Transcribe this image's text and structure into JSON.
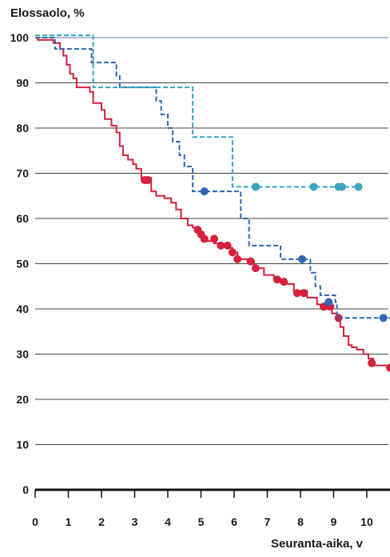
{
  "chart_data": {
    "type": "line",
    "subtype": "kaplan-meier-step",
    "title": "",
    "ylabel": "Elossaolo, %",
    "xlabel": "Seuranta-aika, v",
    "xlim": [
      0,
      10.7
    ],
    "ylim": [
      0,
      100
    ],
    "x_ticks": [
      0,
      1,
      2,
      3,
      4,
      5,
      6,
      7,
      8,
      9,
      10
    ],
    "y_ticks": [
      0,
      10,
      20,
      30,
      40,
      50,
      60,
      70,
      80,
      90,
      100
    ],
    "grid": true,
    "legend": "none",
    "series": [
      {
        "color": "#d4213d",
        "line_style": "solid",
        "steps": [
          [
            0,
            100
          ],
          [
            0.08,
            99.5
          ],
          [
            0.55,
            98.8
          ],
          [
            0.75,
            97.5
          ],
          [
            0.85,
            96
          ],
          [
            0.95,
            94
          ],
          [
            1.05,
            92
          ],
          [
            1.15,
            91
          ],
          [
            1.25,
            89
          ],
          [
            1.65,
            88
          ],
          [
            1.75,
            85.5
          ],
          [
            2.0,
            84
          ],
          [
            2.1,
            82
          ],
          [
            2.3,
            80.5
          ],
          [
            2.45,
            79
          ],
          [
            2.55,
            76
          ],
          [
            2.65,
            74
          ],
          [
            2.8,
            73
          ],
          [
            2.95,
            72
          ],
          [
            3.05,
            71
          ],
          [
            3.2,
            69
          ],
          [
            3.5,
            66
          ],
          [
            3.65,
            65
          ],
          [
            3.9,
            64.5
          ],
          [
            4.1,
            63.5
          ],
          [
            4.25,
            62
          ],
          [
            4.4,
            60
          ],
          [
            4.6,
            58.5
          ],
          [
            4.75,
            58
          ],
          [
            4.9,
            57
          ],
          [
            5.0,
            56
          ],
          [
            5.05,
            55.5
          ],
          [
            5.2,
            55
          ],
          [
            5.4,
            54.5
          ],
          [
            5.6,
            54
          ],
          [
            5.8,
            53.5
          ],
          [
            5.95,
            52.5
          ],
          [
            6.1,
            51
          ],
          [
            6.4,
            50.5
          ],
          [
            6.6,
            49
          ],
          [
            6.9,
            47.5
          ],
          [
            7.2,
            46.5
          ],
          [
            7.5,
            45.5
          ],
          [
            7.8,
            44
          ],
          [
            8.2,
            42.5
          ],
          [
            8.5,
            41
          ],
          [
            8.7,
            40
          ],
          [
            8.95,
            39
          ],
          [
            9.1,
            38
          ],
          [
            9.2,
            36
          ],
          [
            9.3,
            34
          ],
          [
            9.45,
            32
          ],
          [
            9.55,
            31.5
          ],
          [
            9.7,
            31
          ],
          [
            9.9,
            30
          ],
          [
            10.05,
            29
          ],
          [
            10.2,
            27.5
          ],
          [
            10.7,
            27
          ]
        ],
        "censored": [
          [
            3.3,
            68.5
          ],
          [
            3.4,
            68.5
          ],
          [
            4.9,
            57.5
          ],
          [
            5.0,
            56.5
          ],
          [
            5.1,
            55.5
          ],
          [
            5.4,
            55.5
          ],
          [
            5.6,
            54
          ],
          [
            5.8,
            54
          ],
          [
            5.95,
            52.5
          ],
          [
            6.1,
            51
          ],
          [
            6.5,
            50.5
          ],
          [
            6.65,
            49
          ],
          [
            7.3,
            46.5
          ],
          [
            7.5,
            46
          ],
          [
            7.9,
            43.5
          ],
          [
            8.1,
            43.5
          ],
          [
            8.7,
            40.5
          ],
          [
            8.9,
            40.5
          ],
          [
            9.15,
            38
          ],
          [
            10.15,
            28
          ],
          [
            10.7,
            27
          ]
        ]
      },
      {
        "color": "#2f66b2",
        "line_style": "dashed",
        "steps": [
          [
            0,
            100
          ],
          [
            0.6,
            97.5
          ],
          [
            1.7,
            94.5
          ],
          [
            2.45,
            91.5
          ],
          [
            2.55,
            89
          ],
          [
            3.65,
            86
          ],
          [
            3.8,
            83
          ],
          [
            4.0,
            80
          ],
          [
            4.15,
            77
          ],
          [
            4.35,
            74
          ],
          [
            4.5,
            71.5
          ],
          [
            4.75,
            66
          ],
          [
            6.2,
            60
          ],
          [
            6.45,
            54
          ],
          [
            7.4,
            51
          ],
          [
            8.3,
            48
          ],
          [
            8.45,
            45
          ],
          [
            8.6,
            43
          ],
          [
            9.05,
            41.5
          ],
          [
            9.1,
            38
          ],
          [
            10.7,
            38
          ]
        ],
        "censored": [
          [
            5.1,
            66
          ],
          [
            8.05,
            51
          ],
          [
            8.85,
            41.5
          ],
          [
            10.5,
            38
          ]
        ]
      },
      {
        "color": "#3aa5bd",
        "line_style": "dashed",
        "steps": [
          [
            0,
            100.5
          ],
          [
            1.75,
            89
          ],
          [
            4.75,
            78
          ],
          [
            5.95,
            67
          ],
          [
            9.75,
            67
          ]
        ],
        "censored": [
          [
            6.65,
            67
          ],
          [
            8.4,
            67
          ],
          [
            9.15,
            67
          ],
          [
            9.25,
            67
          ],
          [
            9.75,
            67
          ]
        ]
      }
    ]
  }
}
